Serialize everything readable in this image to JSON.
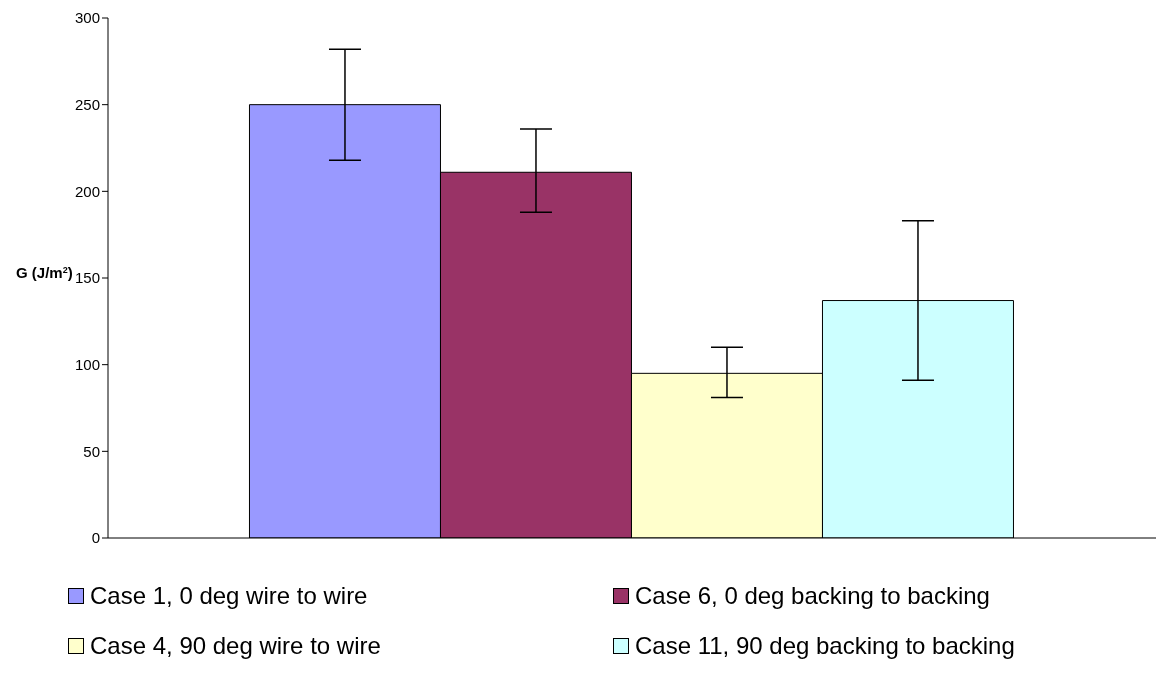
{
  "chart_data": {
    "type": "bar",
    "ylabel": "G (J/m$^{2}$)",
    "categories": [
      null
    ],
    "series": [
      {
        "name": "Case 1, 0 deg wire to wire",
        "color": "#9999ff",
        "values": [
          250
        ],
        "errors": [
          [
            218,
            282
          ]
        ]
      },
      {
        "name": "Case 6, 0 deg backing to backing",
        "color": "#993366",
        "values": [
          211
        ],
        "errors": [
          [
            188,
            236
          ]
        ]
      },
      {
        "name": "Case 4, 90 deg wire to wire",
        "color": "#ffffcc",
        "values": [
          95
        ],
        "errors": [
          [
            81,
            110
          ]
        ]
      },
      {
        "name": "Case 11, 90 deg backing to backing",
        "color": "#ccffff",
        "values": [
          137
        ],
        "errors": [
          [
            91,
            183
          ]
        ]
      }
    ],
    "ylim": [
      0,
      300
    ],
    "yticks": [
      0,
      50,
      100,
      150,
      200,
      250,
      300
    ],
    "grid": false,
    "legend": "bottom"
  }
}
